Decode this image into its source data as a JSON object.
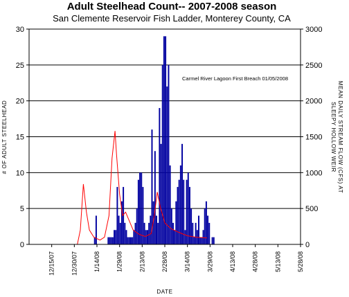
{
  "chart_data": {
    "type": "bar",
    "title": "Adult Steelhead Count-- 2007-2008 season",
    "subtitle": "San Clemente Reservoir Fish Ladder, Monterey County, CA",
    "xlabel": "DATE",
    "ylabel": "# OF ADULT STEELHEAD",
    "y2label_line1": "MEAN DAILY STREAM FLOW (CFS) AT",
    "y2label_line2": "SLEEPY HOLLOW WEIR",
    "ylim": [
      0,
      30
    ],
    "y2lim": [
      0,
      3000
    ],
    "yticks": [
      "0",
      "5",
      "10",
      "15",
      "20",
      "25",
      "30"
    ],
    "y2ticks": [
      "0",
      "500",
      "1000",
      "1500",
      "2000",
      "2500",
      "3000"
    ],
    "x_start": "2007-11-30",
    "x_end": "2008-05-28",
    "xticks": [
      "12/15/07",
      "12/30/07",
      "1/14/08",
      "1/29/08",
      "2/13/08",
      "2/28/08",
      "3/14/08",
      "3/29/08",
      "4/13/08",
      "4/28/08",
      "5/13/08",
      "5/28/08"
    ],
    "annotation": "Carmel River Lagoon First Breach 01/05/2008",
    "grid": true,
    "series": [
      {
        "kind": "bar",
        "color": "#0000a0",
        "axis": "left",
        "points": [
          [
            "2008-01-12",
            1
          ],
          [
            "2008-01-13",
            4
          ],
          [
            "2008-01-21",
            1
          ],
          [
            "2008-01-22",
            1
          ],
          [
            "2008-01-23",
            1
          ],
          [
            "2008-01-24",
            1
          ],
          [
            "2008-01-25",
            2
          ],
          [
            "2008-01-26",
            2
          ],
          [
            "2008-01-27",
            8
          ],
          [
            "2008-01-28",
            4
          ],
          [
            "2008-01-29",
            3
          ],
          [
            "2008-01-30",
            6
          ],
          [
            "2008-01-31",
            8
          ],
          [
            "2008-02-01",
            3
          ],
          [
            "2008-02-02",
            2
          ],
          [
            "2008-02-03",
            1
          ],
          [
            "2008-02-04",
            1
          ],
          [
            "2008-02-05",
            1
          ],
          [
            "2008-02-06",
            1
          ],
          [
            "2008-02-07",
            2
          ],
          [
            "2008-02-08",
            3
          ],
          [
            "2008-02-09",
            5
          ],
          [
            "2008-02-10",
            9
          ],
          [
            "2008-02-11",
            10
          ],
          [
            "2008-02-12",
            10
          ],
          [
            "2008-02-13",
            8
          ],
          [
            "2008-02-14",
            3
          ],
          [
            "2008-02-15",
            2
          ],
          [
            "2008-02-16",
            2
          ],
          [
            "2008-02-17",
            3
          ],
          [
            "2008-02-18",
            4
          ],
          [
            "2008-02-19",
            16
          ],
          [
            "2008-02-20",
            6
          ],
          [
            "2008-02-21",
            13
          ],
          [
            "2008-02-22",
            4
          ],
          [
            "2008-02-23",
            3
          ],
          [
            "2008-02-24",
            19
          ],
          [
            "2008-02-25",
            14
          ],
          [
            "2008-02-26",
            25
          ],
          [
            "2008-02-27",
            29
          ],
          [
            "2008-02-28",
            29
          ],
          [
            "2008-02-29",
            22
          ],
          [
            "2008-03-01",
            25
          ],
          [
            "2008-03-02",
            11
          ],
          [
            "2008-03-03",
            5
          ],
          [
            "2008-03-04",
            3
          ],
          [
            "2008-03-05",
            2
          ],
          [
            "2008-03-06",
            6
          ],
          [
            "2008-03-07",
            8
          ],
          [
            "2008-03-08",
            9
          ],
          [
            "2008-03-09",
            11
          ],
          [
            "2008-03-10",
            14
          ],
          [
            "2008-03-11",
            9
          ],
          [
            "2008-03-12",
            2
          ],
          [
            "2008-03-13",
            9
          ],
          [
            "2008-03-14",
            10
          ],
          [
            "2008-03-15",
            8
          ],
          [
            "2008-03-16",
            5
          ],
          [
            "2008-03-17",
            3
          ],
          [
            "2008-03-18",
            1
          ],
          [
            "2008-03-19",
            3
          ],
          [
            "2008-03-20",
            2
          ],
          [
            "2008-03-21",
            4
          ],
          [
            "2008-03-22",
            1
          ],
          [
            "2008-03-23",
            1
          ],
          [
            "2008-03-24",
            2
          ],
          [
            "2008-03-25",
            5
          ],
          [
            "2008-03-26",
            6
          ],
          [
            "2008-03-27",
            4
          ],
          [
            "2008-03-28",
            3
          ],
          [
            "2008-03-30",
            1
          ],
          [
            "2008-03-31",
            1
          ]
        ]
      },
      {
        "kind": "line",
        "color": "#ff0000",
        "axis": "right",
        "points": [
          [
            "2007-11-30",
            0
          ],
          [
            "2007-12-20",
            0
          ],
          [
            "2008-01-01",
            0
          ],
          [
            "2008-01-03",
            200
          ],
          [
            "2008-01-05",
            840
          ],
          [
            "2008-01-07",
            450
          ],
          [
            "2008-01-09",
            200
          ],
          [
            "2008-01-12",
            100
          ],
          [
            "2008-01-16",
            60
          ],
          [
            "2008-01-19",
            100
          ],
          [
            "2008-01-22",
            400
          ],
          [
            "2008-01-24",
            1200
          ],
          [
            "2008-01-26",
            1580
          ],
          [
            "2008-01-27",
            1250
          ],
          [
            "2008-01-29",
            700
          ],
          [
            "2008-01-31",
            400
          ],
          [
            "2008-02-02",
            450
          ],
          [
            "2008-02-04",
            350
          ],
          [
            "2008-02-07",
            200
          ],
          [
            "2008-02-11",
            140
          ],
          [
            "2008-02-15",
            110
          ],
          [
            "2008-02-19",
            150
          ],
          [
            "2008-02-21",
            400
          ],
          [
            "2008-02-23",
            730
          ],
          [
            "2008-02-25",
            520
          ],
          [
            "2008-02-28",
            300
          ],
          [
            "2008-03-03",
            220
          ],
          [
            "2008-03-08",
            170
          ],
          [
            "2008-03-14",
            120
          ],
          [
            "2008-03-20",
            100
          ],
          [
            "2008-03-27",
            90
          ]
        ]
      }
    ]
  }
}
